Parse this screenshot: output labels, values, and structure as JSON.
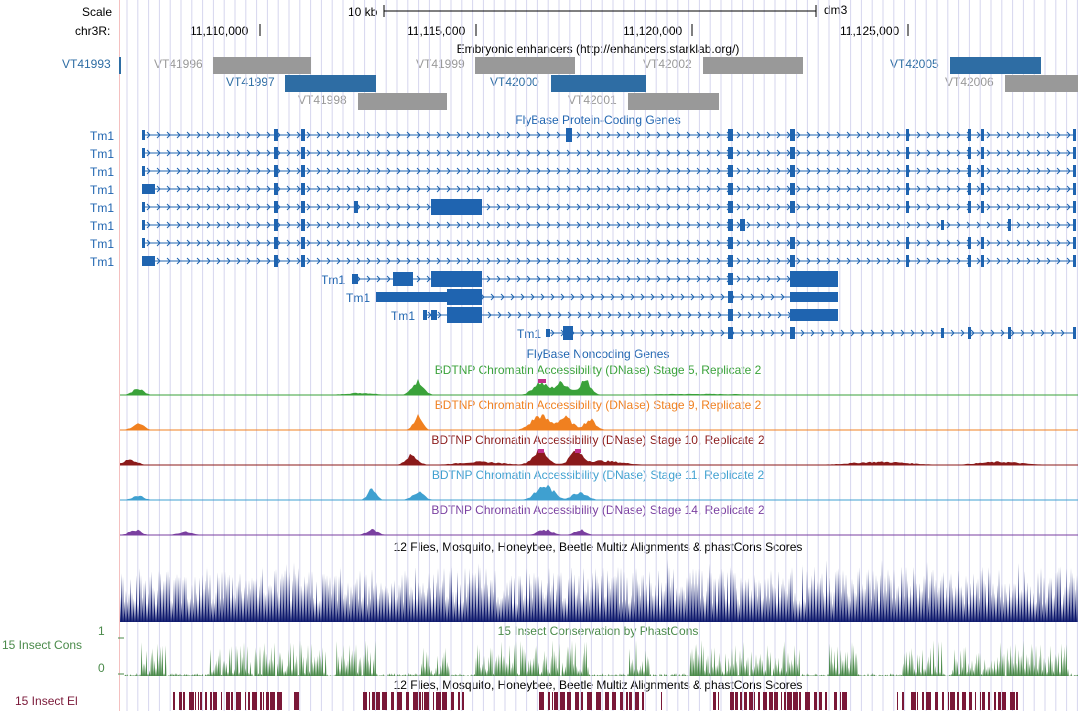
{
  "ruler": {
    "scale_label": "Scale",
    "scale_bar_text": "10 kb",
    "assembly": "dm3",
    "chrom_label": "chr3R:",
    "positions": [
      "11,110,000",
      "11,115,000",
      "11,120,000",
      "11,125,000"
    ]
  },
  "enhancers": {
    "title": "Embryonic enhancers (http://enhancers.starklab.org/)",
    "left_item": "VT41993",
    "items": [
      {
        "name": "VT41996",
        "highlight": false
      },
      {
        "name": "VT41997",
        "highlight": true
      },
      {
        "name": "VT41998",
        "highlight": false
      },
      {
        "name": "VT41999",
        "highlight": false
      },
      {
        "name": "VT42000",
        "highlight": true
      },
      {
        "name": "VT42001",
        "highlight": false
      },
      {
        "name": "VT42002",
        "highlight": false
      },
      {
        "name": "VT42005",
        "highlight": true
      },
      {
        "name": "VT42006",
        "highlight": false
      }
    ]
  },
  "genes": {
    "title": "FlyBase Protein-Coding Genes",
    "gene_name": "Tm1",
    "left_labels": [
      "Tm1",
      "Tm1",
      "Tm1",
      "Tm1",
      "Tm1",
      "Tm1",
      "Tm1",
      "Tm1"
    ],
    "inline_labels": [
      "Tm1",
      "Tm1",
      "Tm1",
      "Tm1"
    ]
  },
  "noncoding": {
    "title": "FlyBase Noncoding Genes"
  },
  "dnase_tracks": [
    {
      "title": "BDTNP Chromatin Accessibility (DNase) Stage 5, Replicate 2",
      "color": "#3aa23a"
    },
    {
      "title": "BDTNP Chromatin Accessibility (DNase) Stage 9, Replicate 2",
      "color": "#f08020"
    },
    {
      "title": "BDTNP Chromatin Accessibility (DNase) Stage 10, Replicate 2",
      "color": "#8b1a1a"
    },
    {
      "title": "BDTNP Chromatin Accessibility (DNase) Stage 11, Replicate 2",
      "color": "#3fa0d0"
    },
    {
      "title": "BDTNP Chromatin Accessibility (DNase) Stage 14, Replicate 2",
      "color": "#7a3fa0"
    }
  ],
  "multiz": {
    "title": "12 Flies, Mosquito, Honeybee, Beetle Multiz Alignments & phastCons Scores",
    "color": "#0f1a6e"
  },
  "phastcons": {
    "title": "15 Insect Conservation by PhastCons",
    "left_label": "15 Insect Cons",
    "axis_max": "1",
    "axis_min": "0",
    "color": "#4a8a4a"
  },
  "elements": {
    "title": "12 Flies, Mosquito, Honeybee, Beetle Multiz Alignments & phastCons Scores",
    "left_label": "15 Insect El",
    "color": "#7a1838"
  },
  "colors": {
    "enhancer_highlight": "#2e6da4",
    "enhancer_gray": "#999999",
    "gene_blue": "#1f64b0",
    "gridline": "#d6d6ee"
  }
}
